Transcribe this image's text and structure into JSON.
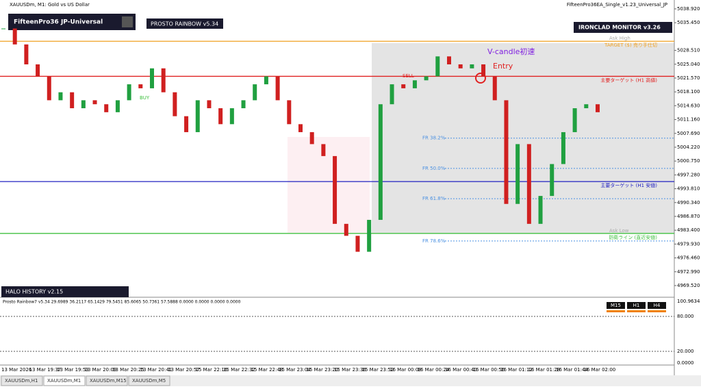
{
  "header": {
    "symbol_title": "XAUUSDm, M1: Gold vs US Dollar",
    "ea_name": "FifteenPro36EA_Single_v1.23_Universal_JP"
  },
  "panels": {
    "main": "FifteenPro36 JP-Universal",
    "rainbow": "PROSTO RAINBOW v5.34",
    "monitor": "IRONCLAD MONITOR v3.26",
    "history": "HALO HISTORY v2.15"
  },
  "annotations": {
    "vcandle": "V-candle初速",
    "entry": "Entry",
    "ask_high": "Ask High",
    "ask_low": "Ask Low",
    "sell": "SELL",
    "buy": "BUY"
  },
  "price_axis": {
    "ylim": [
      4966.94,
      5040.8
    ],
    "ticks": [
      {
        "value": 4969.52,
        "label": "4969.520"
      },
      {
        "value": 4972.99,
        "label": "4972.990"
      },
      {
        "value": 4976.46,
        "label": "4976.460"
      },
      {
        "value": 4979.93,
        "label": "4979.930"
      },
      {
        "value": 4983.4,
        "label": "4983.400"
      },
      {
        "value": 4986.87,
        "label": "4986.870"
      },
      {
        "value": 4990.34,
        "label": "4990.340"
      },
      {
        "value": 4993.81,
        "label": "4993.810"
      },
      {
        "value": 4997.28,
        "label": "4997.280"
      },
      {
        "value": 5000.75,
        "label": "5000.750"
      },
      {
        "value": 5004.22,
        "label": "5004.220"
      },
      {
        "value": 5007.69,
        "label": "5007.690"
      },
      {
        "value": 5011.16,
        "label": "5011.160"
      },
      {
        "value": 5014.63,
        "label": "5014.630"
      },
      {
        "value": 5018.1,
        "label": "5018.100"
      },
      {
        "value": 5021.57,
        "label": "5021.570"
      },
      {
        "value": 5025.04,
        "label": "5025.040"
      },
      {
        "value": 5028.51,
        "label": "5028.510"
      },
      {
        "value": 5035.45,
        "label": "5035.450"
      },
      {
        "value": 5038.92,
        "label": "5038.920"
      }
    ]
  },
  "levels": [
    {
      "label": "TARGET ($) 売り手仕切",
      "value": 5030.8,
      "color": "#f0a020"
    },
    {
      "label": "主要ターゲット (H1 高値)",
      "value": 5022.0,
      "color": "#e02020"
    },
    {
      "label": "主要ターゲット (H1 安値)",
      "value": 4995.6,
      "color": "#2020c0"
    },
    {
      "label": "防衛ライン (直近安値)",
      "value": 4982.6,
      "color": "#40c040"
    }
  ],
  "fib": [
    {
      "label": "FR 38.2%",
      "value": 5006.5
    },
    {
      "label": "FR 50.0%",
      "value": 4998.9
    },
    {
      "label": "FR 61.8%",
      "value": 4991.3
    },
    {
      "label": "FR 78.6%",
      "value": 4980.7
    }
  ],
  "closes": [
    5034,
    5030,
    5025,
    5022,
    5016,
    5018,
    5014,
    5016,
    5015,
    5013,
    5016,
    5020,
    5019,
    5024,
    5018,
    5012,
    5008,
    5016,
    5014,
    5010,
    5014,
    5016,
    5020,
    5022,
    5016,
    5010,
    5008,
    5005,
    5002,
    4985,
    4982,
    4978,
    4986,
    5015,
    5020,
    5019,
    5021,
    5022,
    5027,
    5025,
    5024,
    5025,
    5022,
    5016,
    4990,
    5005,
    4985,
    4992,
    5000,
    5008,
    5014,
    5015,
    5013
  ],
  "time_axis": [
    "13 Mar 2026",
    "13 Mar 19:37",
    "13 Mar 19:53",
    "13 Mar 20:09",
    "13 Mar 20:25",
    "13 Mar 20:41",
    "13 Mar 20:57",
    "15 Mar 22:16",
    "15 Mar 22:32",
    "15 Mar 22:48",
    "15 Mar 23:04",
    "15 Mar 23:20",
    "15 Mar 23:36",
    "15 Mar 23:52",
    "16 Mar 00:08",
    "16 Mar 00:24",
    "16 Mar 00:40",
    "16 Mar 00:56",
    "16 Mar 01:12",
    "16 Mar 01:28",
    "16 Mar 01:44",
    "16 Mar 02:00"
  ],
  "oscillator": {
    "header": "Prosto Rainbow7 v5.34 29.6989 36.2117 65.1429 79.5451 85.6065 50.7361 57.5888 0.0000 0.0000 0.0000 0.0000",
    "axis": [
      "100.9634",
      "80.000",
      "20.000",
      "0.0000"
    ],
    "buttons": [
      "M15",
      "H1",
      "H4"
    ]
  },
  "tabs": [
    "XAUUSDm,H1",
    "XAUUSDm,M1",
    "XAUUSDm,M15",
    "XAUUSDm,M5"
  ]
}
